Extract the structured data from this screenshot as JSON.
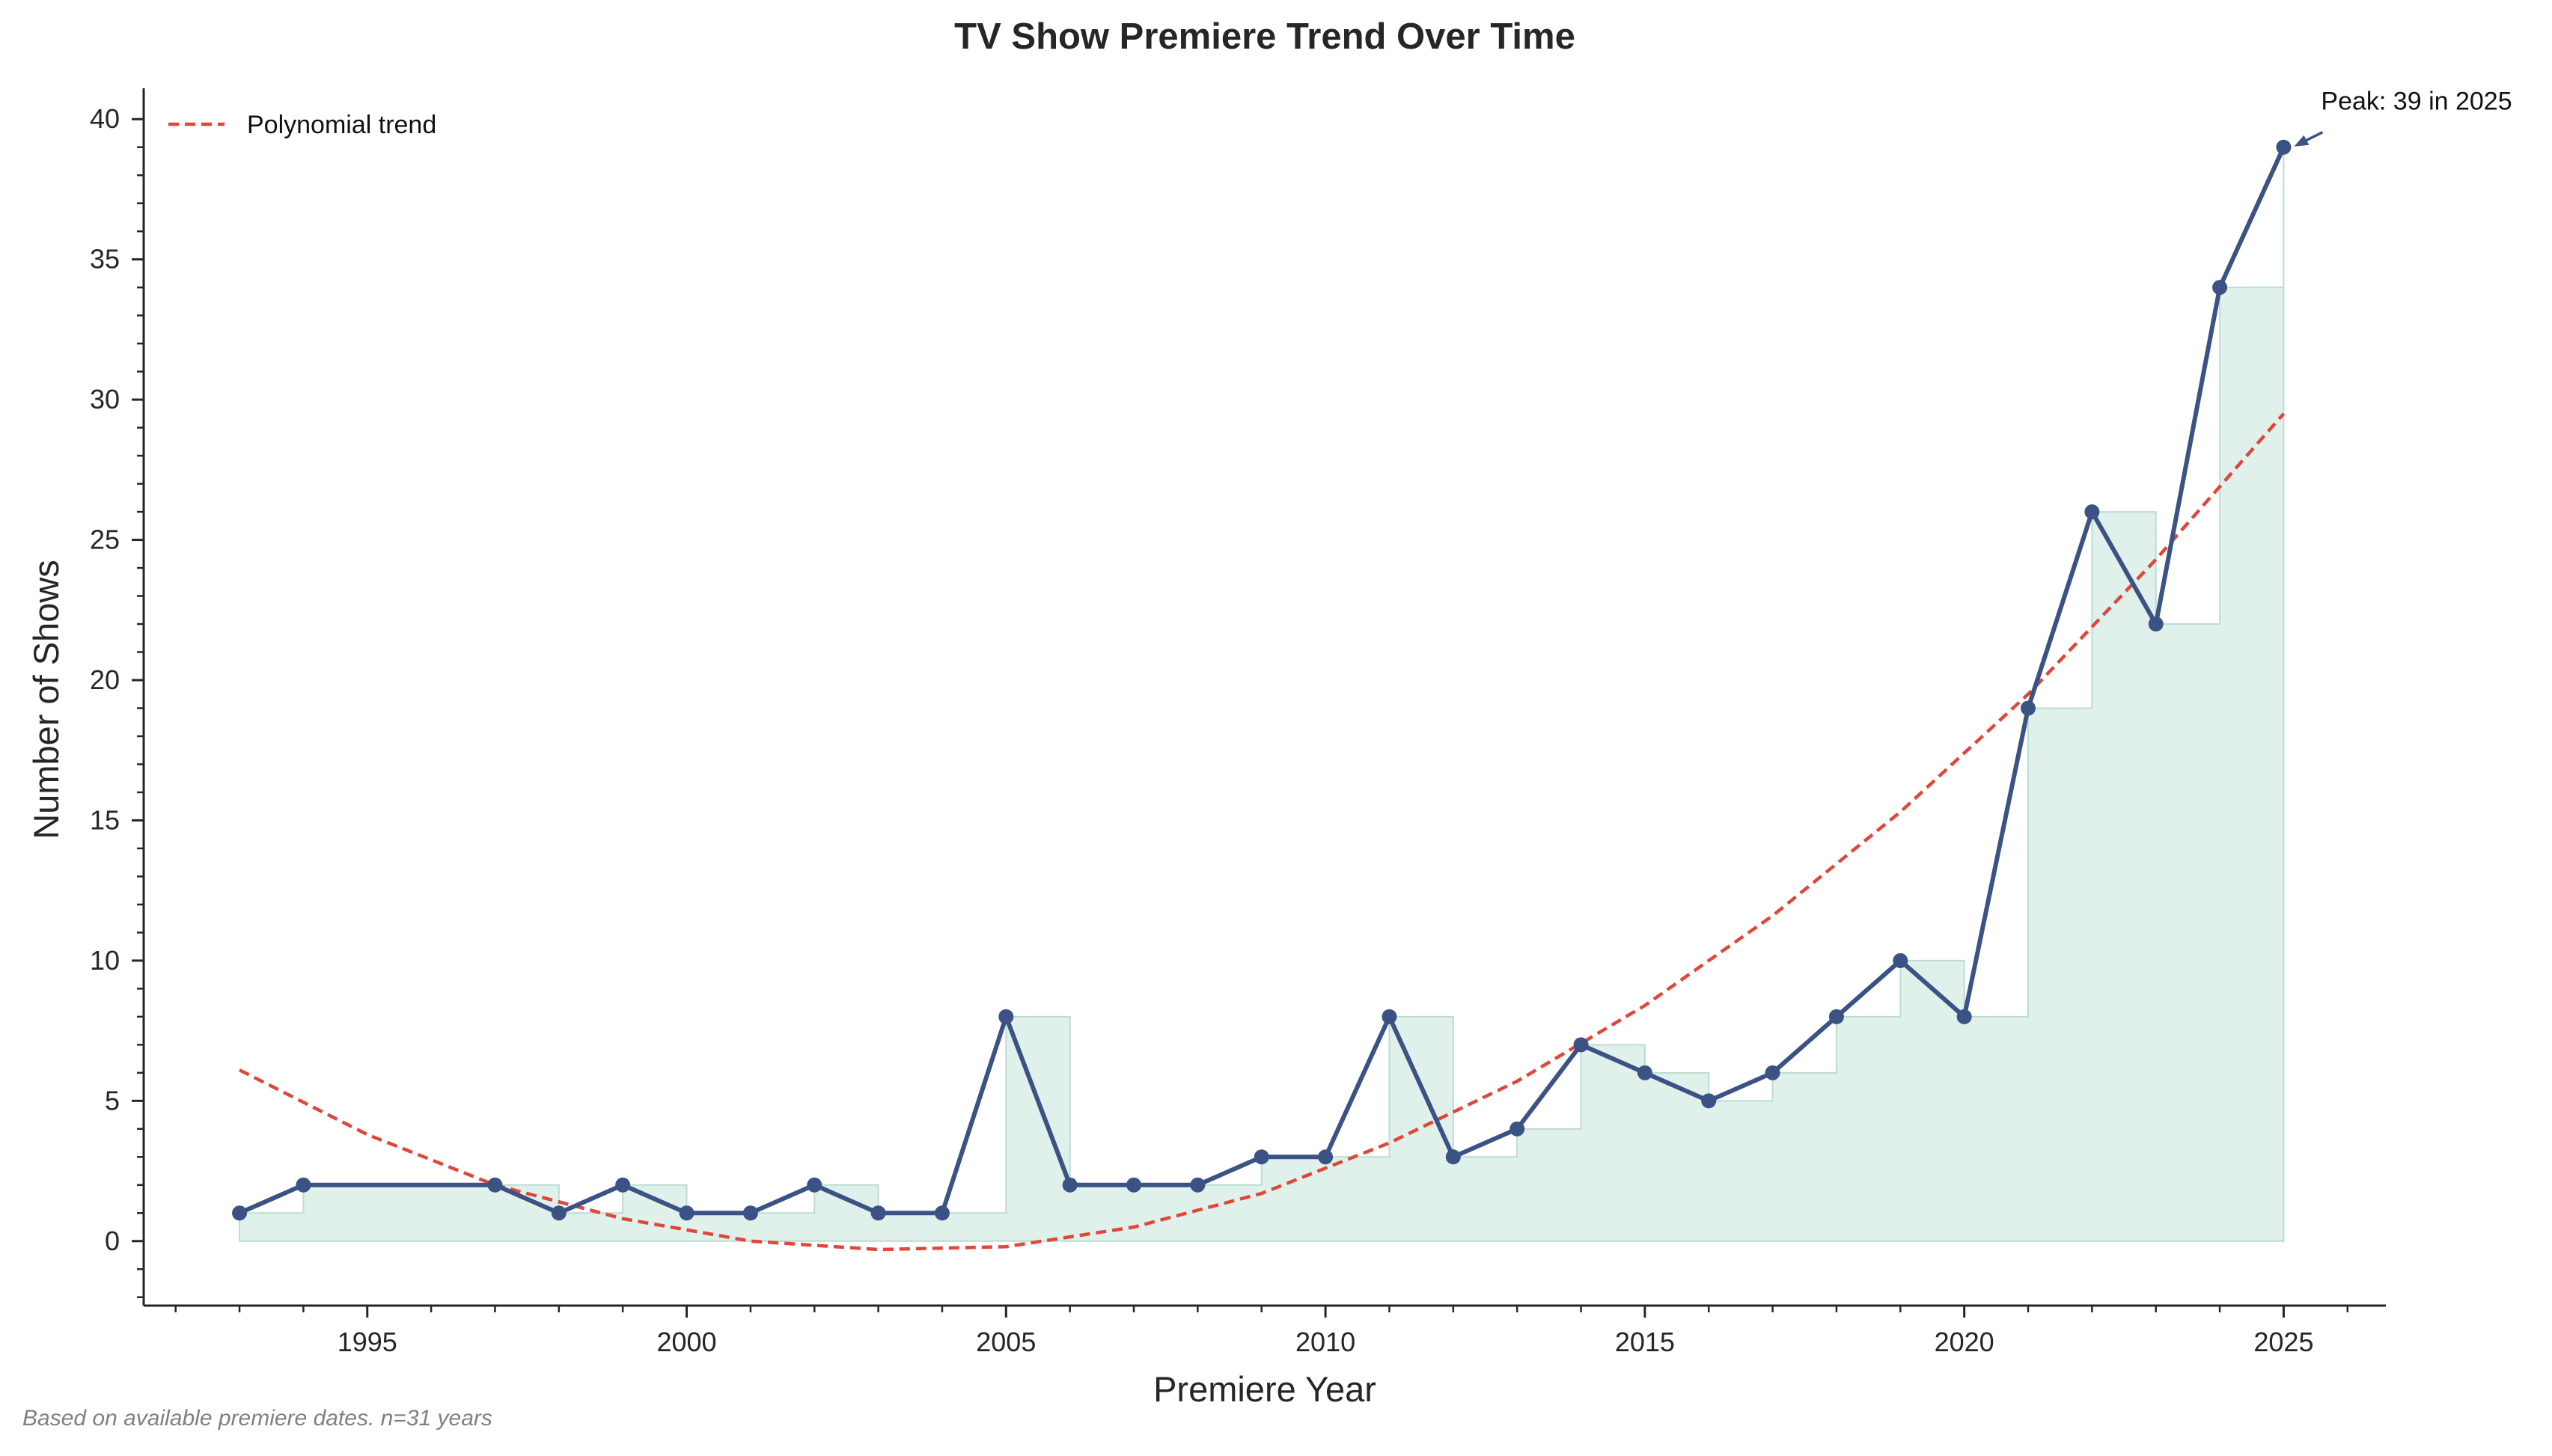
{
  "chart_data": {
    "type": "line",
    "title": "TV Show Premiere Trend Over Time",
    "xlabel": "Premiere Year",
    "ylabel": "Number of Shows",
    "xlim": [
      1991.5,
      2026.6
    ],
    "ylim": [
      -2.3,
      41.1
    ],
    "xticks": [
      1995,
      2000,
      2005,
      2010,
      2015,
      2020,
      2025
    ],
    "xticks_minor": [
      1992,
      1993,
      1994,
      1996,
      1997,
      1998,
      1999,
      2001,
      2002,
      2003,
      2004,
      2006,
      2007,
      2008,
      2009,
      2011,
      2012,
      2013,
      2014,
      2016,
      2017,
      2018,
      2019,
      2021,
      2022,
      2023,
      2024,
      2026
    ],
    "yticks": [
      0,
      5,
      10,
      15,
      20,
      25,
      30,
      35,
      40
    ],
    "yticks_minor": [
      -2,
      -1,
      1,
      2,
      3,
      4,
      6,
      7,
      8,
      9,
      11,
      12,
      13,
      14,
      16,
      17,
      18,
      19,
      21,
      22,
      23,
      24,
      26,
      27,
      28,
      29,
      31,
      32,
      33,
      34,
      36,
      37,
      38,
      39
    ],
    "grid": false,
    "series": [
      {
        "kind": "line-markers",
        "color": "#3b5285",
        "x": [
          1993,
          1994,
          1997,
          1998,
          1999,
          2000,
          2001,
          2002,
          2003,
          2004,
          2005,
          2006,
          2007,
          2008,
          2009,
          2010,
          2011,
          2012,
          2013,
          2014,
          2015,
          2016,
          2017,
          2018,
          2019,
          2020,
          2021,
          2022,
          2023,
          2024,
          2025
        ],
        "y": [
          1,
          2,
          2,
          1,
          2,
          1,
          1,
          2,
          1,
          1,
          8,
          2,
          2,
          2,
          3,
          3,
          8,
          3,
          4,
          7,
          6,
          5,
          6,
          8,
          10,
          8,
          19,
          26,
          22,
          34,
          39
        ]
      },
      {
        "name": "Polynomial trend",
        "kind": "dashed-line",
        "color": "#e0473a",
        "x": [
          1993,
          1995,
          1997,
          1999,
          2001,
          2003,
          2005,
          2007,
          2009,
          2011,
          2013,
          2015,
          2017,
          2019,
          2021,
          2023,
          2025
        ],
        "y": [
          6.1,
          3.8,
          2.0,
          0.8,
          0.0,
          -0.3,
          -0.2,
          0.5,
          1.7,
          3.5,
          5.7,
          8.4,
          11.6,
          15.3,
          19.5,
          24.3,
          29.5
        ]
      }
    ],
    "step_fill": {
      "color": "#cce8e0"
    },
    "legend": {
      "position": "top-left",
      "entries": [
        "Polynomial trend"
      ]
    },
    "annotation": {
      "text": "Peak: 39 in 2025",
      "x": 2025,
      "y": 39
    },
    "footnote": "Based on available premiere dates. n=31 years"
  }
}
